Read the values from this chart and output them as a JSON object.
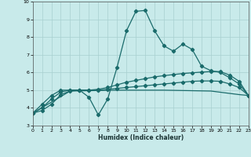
{
  "xlabel": "Humidex (Indice chaleur)",
  "xlim": [
    0,
    23
  ],
  "ylim": [
    3,
    10
  ],
  "yticks": [
    3,
    4,
    5,
    6,
    7,
    8,
    9,
    10
  ],
  "xticks": [
    0,
    1,
    2,
    3,
    4,
    5,
    6,
    7,
    8,
    9,
    10,
    11,
    12,
    13,
    14,
    15,
    16,
    17,
    18,
    19,
    20,
    21,
    22,
    23
  ],
  "bg_color": "#c8eaea",
  "grid_color": "#a8d0d0",
  "line_color": "#1a6b6b",
  "line1_x": [
    0,
    1,
    2,
    3,
    4,
    5,
    6,
    7,
    8,
    9,
    10,
    11,
    12,
    13,
    14,
    15,
    16,
    17,
    18,
    19,
    20,
    21,
    22,
    23
  ],
  "line1_y": [
    3.7,
    4.2,
    4.7,
    5.0,
    5.0,
    5.0,
    4.6,
    3.6,
    4.5,
    6.3,
    8.35,
    9.45,
    9.5,
    8.35,
    7.5,
    7.2,
    7.6,
    7.3,
    6.35,
    6.1,
    6.0,
    5.7,
    5.35,
    4.7
  ],
  "line2_x": [
    0,
    1,
    2,
    3,
    4,
    5,
    6,
    7,
    8,
    9,
    10,
    11,
    12,
    13,
    14,
    15,
    16,
    17,
    18,
    19,
    20,
    21,
    22,
    23
  ],
  "line2_y": [
    3.7,
    4.0,
    4.5,
    4.9,
    5.0,
    5.0,
    5.0,
    5.05,
    5.15,
    5.3,
    5.45,
    5.55,
    5.65,
    5.75,
    5.82,
    5.88,
    5.94,
    5.98,
    6.02,
    6.05,
    6.05,
    5.85,
    5.5,
    4.7
  ],
  "line3_x": [
    0,
    1,
    2,
    3,
    4,
    5,
    6,
    7,
    8,
    9,
    10,
    11,
    12,
    13,
    14,
    15,
    16,
    17,
    18,
    19,
    20,
    21,
    22,
    23
  ],
  "line3_y": [
    3.7,
    3.85,
    4.2,
    4.75,
    4.95,
    5.0,
    5.0,
    5.0,
    5.05,
    5.1,
    5.15,
    5.2,
    5.25,
    5.3,
    5.35,
    5.4,
    5.45,
    5.5,
    5.52,
    5.52,
    5.5,
    5.35,
    5.15,
    4.7
  ],
  "line4_x": [
    0,
    4,
    9,
    14,
    19,
    22,
    23
  ],
  "line4_y": [
    3.7,
    4.95,
    5.0,
    5.0,
    4.95,
    4.75,
    4.7
  ]
}
